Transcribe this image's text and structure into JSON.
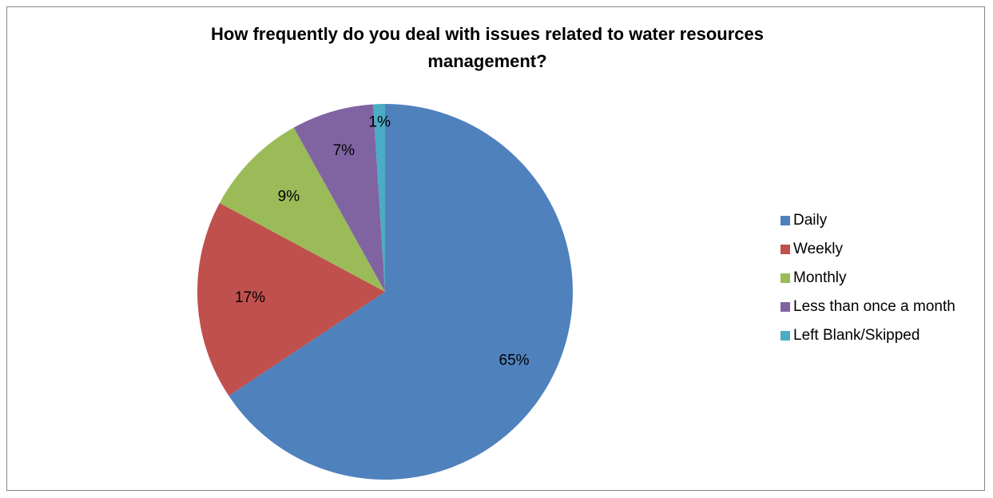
{
  "chart_data": {
    "type": "pie",
    "title": "How frequently do you deal with issues related to water resources management?",
    "title_lines": [
      "How frequently do you deal with issues related to water resources",
      "management?"
    ],
    "categories": [
      "Daily",
      "Weekly",
      "Monthly",
      "Less than once a month",
      "Left Blank/Skipped"
    ],
    "values": [
      65,
      17,
      9,
      7,
      1
    ],
    "data_labels": [
      "65%",
      "17%",
      "9%",
      "7%",
      "1%"
    ],
    "colors": [
      "#4F81BD",
      "#C0504D",
      "#9BBB59",
      "#8064A2",
      "#4BACC6"
    ],
    "start_angle_deg": 0,
    "direction": "clockwise",
    "legend_position": "right"
  }
}
